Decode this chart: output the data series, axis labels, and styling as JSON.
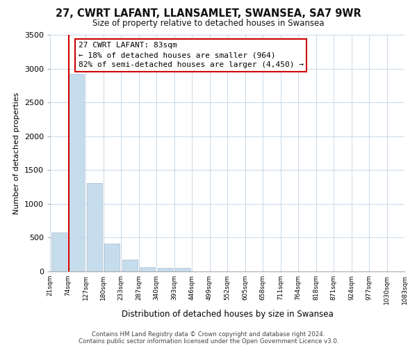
{
  "title": "27, CWRT LAFANT, LLANSAMLET, SWANSEA, SA7 9WR",
  "subtitle": "Size of property relative to detached houses in Swansea",
  "xlabel": "Distribution of detached houses by size in Swansea",
  "ylabel": "Number of detached properties",
  "bar_values": [
    580,
    2920,
    1310,
    415,
    170,
    65,
    55,
    55,
    0,
    0,
    0,
    0,
    0,
    0,
    0,
    0,
    0,
    0,
    0,
    0
  ],
  "bin_labels": [
    "21sqm",
    "74sqm",
    "127sqm",
    "180sqm",
    "233sqm",
    "287sqm",
    "340sqm",
    "393sqm",
    "446sqm",
    "499sqm",
    "552sqm",
    "605sqm",
    "658sqm",
    "711sqm",
    "764sqm",
    "818sqm",
    "871sqm",
    "924sqm",
    "977sqm",
    "1030sqm",
    "1083sqm"
  ],
  "bar_color": "#c5dced",
  "vline_color": "#cc0000",
  "annotation_title": "27 CWRT LAFANT: 83sqm",
  "annotation_line1": "← 18% of detached houses are smaller (964)",
  "annotation_line2": "82% of semi-detached houses are larger (4,450) →",
  "box_edge_color": "#cc0000",
  "ylim": [
    0,
    3500
  ],
  "yticks": [
    0,
    500,
    1000,
    1500,
    2000,
    2500,
    3000,
    3500
  ],
  "footer_line1": "Contains HM Land Registry data © Crown copyright and database right 2024.",
  "footer_line2": "Contains public sector information licensed under the Open Government Licence v3.0.",
  "background_color": "#ffffff",
  "grid_color": "#c8d8e8"
}
